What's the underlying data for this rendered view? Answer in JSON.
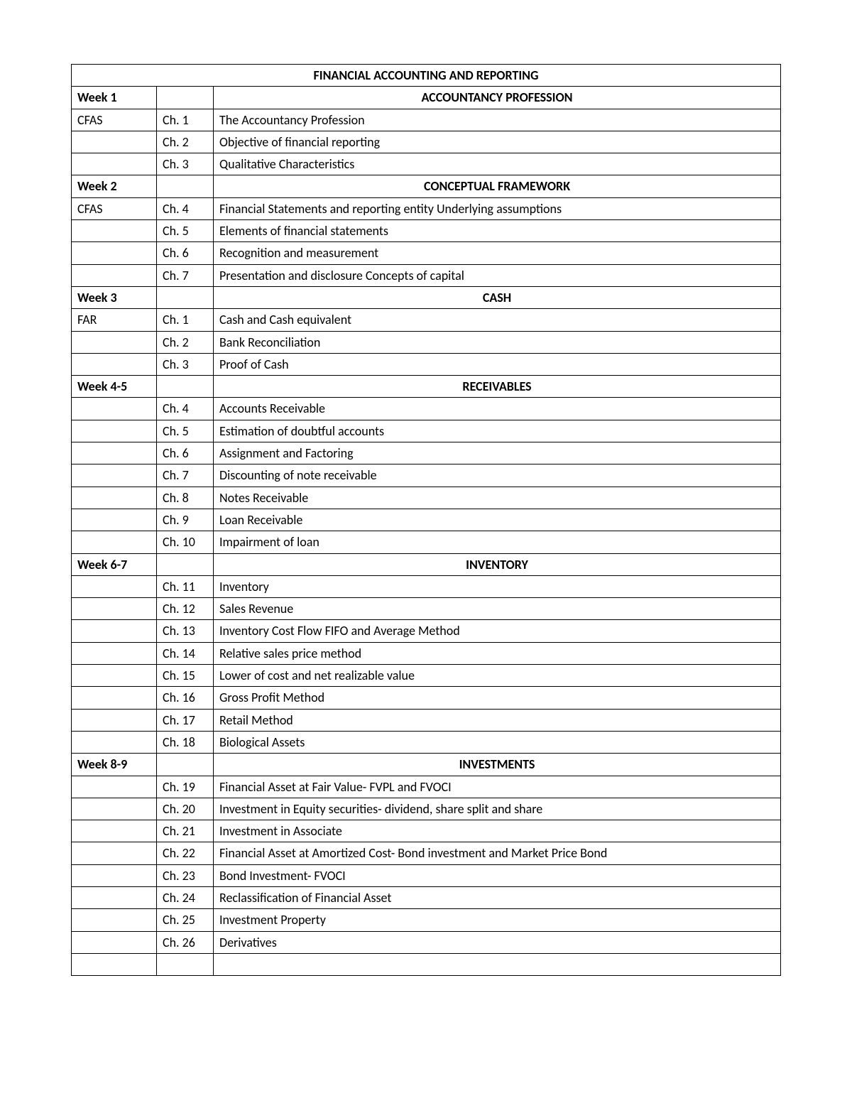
{
  "table": {
    "title": "FINANCIAL ACCOUNTING AND REPORTING",
    "sections": [
      {
        "week": "Week 1",
        "heading": "ACCOUNTANCY PROFESSION",
        "subject": "CFAS",
        "rows": [
          {
            "chapter": "Ch. 1",
            "topic": "The Accountancy Profession"
          },
          {
            "chapter": "Ch. 2",
            "topic": "Objective of financial reporting"
          },
          {
            "chapter": "Ch. 3",
            "topic": "Qualitative Characteristics"
          }
        ]
      },
      {
        "week": "Week 2",
        "heading": "CONCEPTUAL FRAMEWORK",
        "subject": "CFAS",
        "rows": [
          {
            "chapter": "Ch. 4",
            "topic": "Financial Statements and reporting entity Underlying assumptions"
          },
          {
            "chapter": "Ch. 5",
            "topic": "Elements of financial statements"
          },
          {
            "chapter": "Ch. 6",
            "topic": "Recognition and measurement"
          },
          {
            "chapter": "Ch. 7",
            "topic": "Presentation and disclosure Concepts of capital"
          }
        ]
      },
      {
        "week": "Week 3",
        "heading": "CASH",
        "subject": "FAR",
        "rows": [
          {
            "chapter": "Ch. 1",
            "topic": "Cash and Cash equivalent"
          },
          {
            "chapter": "Ch. 2",
            "topic": "Bank Reconciliation"
          },
          {
            "chapter": "Ch. 3",
            "topic": "Proof of Cash"
          }
        ]
      },
      {
        "week": "Week 4-5",
        "heading": "RECEIVABLES",
        "subject": "",
        "rows": [
          {
            "chapter": "Ch. 4",
            "topic": "Accounts Receivable"
          },
          {
            "chapter": "Ch. 5",
            "topic": "Estimation of doubtful accounts"
          },
          {
            "chapter": "Ch. 6",
            "topic": "Assignment and Factoring"
          },
          {
            "chapter": "Ch. 7",
            "topic": "Discounting of note receivable"
          },
          {
            "chapter": "Ch. 8",
            "topic": "Notes Receivable"
          },
          {
            "chapter": "Ch. 9",
            "topic": "Loan Receivable"
          },
          {
            "chapter": "Ch. 10",
            "topic": "Impairment of loan"
          }
        ]
      },
      {
        "week": "Week 6-7",
        "heading": "INVENTORY",
        "subject": "",
        "rows": [
          {
            "chapter": "Ch. 11",
            "topic": "Inventory"
          },
          {
            "chapter": "Ch. 12",
            "topic": "Sales Revenue"
          },
          {
            "chapter": "Ch. 13",
            "topic": "Inventory Cost Flow FIFO and Average Method"
          },
          {
            "chapter": "Ch. 14",
            "topic": "Relative sales price method"
          },
          {
            "chapter": "Ch. 15",
            "topic": "Lower of cost and net realizable value"
          },
          {
            "chapter": "Ch. 16",
            "topic": "Gross Profit Method"
          },
          {
            "chapter": "Ch. 17",
            "topic": "Retail Method"
          },
          {
            "chapter": "Ch. 18",
            "topic": "Biological Assets"
          }
        ]
      },
      {
        "week": "Week 8-9",
        "heading": "INVESTMENTS",
        "subject": "",
        "rows": [
          {
            "chapter": "Ch. 19",
            "topic": "Financial Asset at Fair Value- FVPL and FVOCI"
          },
          {
            "chapter": "Ch. 20",
            "topic": "Investment in Equity securities- dividend, share split and share"
          },
          {
            "chapter": "Ch. 21",
            "topic": "Investment in Associate"
          },
          {
            "chapter": "Ch. 22",
            "topic": "Financial Asset at Amortized Cost- Bond investment and Market Price Bond"
          },
          {
            "chapter": "Ch. 23",
            "topic": "Bond Investment- FVOCI"
          },
          {
            "chapter": "Ch. 24",
            "topic": "Reclassification of Financial Asset"
          },
          {
            "chapter": "Ch. 25",
            "topic": "Investment Property"
          },
          {
            "chapter": "Ch. 26",
            "topic": "Derivatives"
          }
        ]
      }
    ]
  }
}
